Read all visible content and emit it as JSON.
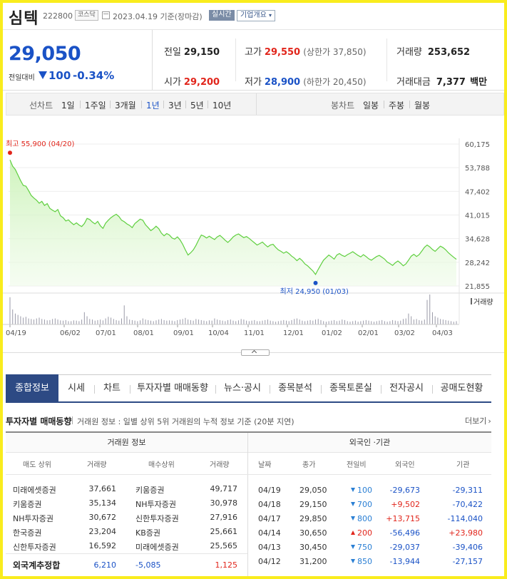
{
  "header": {
    "name": "심텍",
    "code": "222800",
    "market": "코스닥",
    "date": "2023.04.19 기준(장마감)",
    "realtime_label": "실시간",
    "corp_label": "기업개요",
    "corp_icon": "chevron-down-icon"
  },
  "price": {
    "current": "29,050",
    "change_label": "전일대비",
    "change": "100",
    "change_pct": "-0.34%",
    "prev_close_label": "전일",
    "prev_close": "29,150",
    "high_label": "고가",
    "high": "29,550",
    "upper_limit": "(상한가 37,850)",
    "volume_label": "거래량",
    "volume": "253,652",
    "open_label": "시가",
    "open": "29,200",
    "low_label": "저가",
    "low": "28,900",
    "lower_limit": "(하한가 20,450)",
    "trade_value_label": "거래대금",
    "trade_value": "7,377",
    "trade_value_unit": "백만"
  },
  "period_tabs": {
    "line_label": "선차트",
    "items": [
      "1일",
      "1주일",
      "3개월",
      "1년",
      "3년",
      "5년",
      "10년"
    ],
    "active": "1년",
    "candle_label": "봉차트",
    "candle_items": [
      "일봉",
      "주봉",
      "월봉"
    ]
  },
  "chart_data": {
    "type": "area",
    "y_ticks": [
      "60,175",
      "53,788",
      "47,402",
      "41,015",
      "34,628",
      "28,242",
      "21,855"
    ],
    "ylim": [
      21855,
      60175
    ],
    "x_ticks": [
      "04/19",
      "06/02",
      "07/01",
      "08/01",
      "09/01",
      "10/04",
      "11/01",
      "12/01",
      "01/02",
      "02/01",
      "03/02",
      "04/03"
    ],
    "max_label": "최고 55,900 (04/20)",
    "min_label": "최저 24,950 (01/03)",
    "volume_label": "거래량",
    "price_series": [
      55900,
      54200,
      53300,
      51800,
      50300,
      49000,
      48800,
      47600,
      46300,
      45600,
      45000,
      44200,
      44700,
      43600,
      44100,
      42800,
      42300,
      41900,
      42500,
      40800,
      40300,
      39400,
      39700,
      39000,
      38400,
      38900,
      38300,
      37900,
      38700,
      40100,
      39800,
      39100,
      38600,
      39300,
      38100,
      37400,
      38800,
      39600,
      40300,
      40800,
      41200,
      40600,
      39600,
      39200,
      38600,
      38200,
      37600,
      38700,
      39300,
      39900,
      39600,
      38400,
      37600,
      36800,
      37300,
      38000,
      37300,
      36100,
      35400,
      36000,
      35600,
      34800,
      34500,
      35100,
      34300,
      33100,
      31600,
      30200,
      30800,
      31600,
      32800,
      34300,
      35600,
      35300,
      34800,
      35300,
      34800,
      34400,
      35100,
      35500,
      34900,
      34200,
      33600,
      34300,
      35100,
      35600,
      35900,
      35400,
      34900,
      35200,
      34700,
      34100,
      33500,
      32900,
      33300,
      33700,
      33000,
      32400,
      32900,
      33100,
      32300,
      31600,
      31200,
      30700,
      31100,
      30600,
      29900,
      29400,
      28700,
      29300,
      28700,
      27800,
      27300,
      26600,
      25900,
      24950,
      26300,
      27600,
      28800,
      29500,
      30200,
      29700,
      29100,
      30200,
      30600,
      30100,
      29800,
      30300,
      30700,
      31100,
      30600,
      30100,
      29700,
      30300,
      29800,
      29200,
      28800,
      29300,
      29800,
      30100,
      29600,
      29100,
      28300,
      27900,
      27400,
      28100,
      28600,
      28000,
      27300,
      27800,
      28800,
      29900,
      30400,
      29800,
      30300,
      31300,
      32300,
      32900,
      32400,
      31700,
      31200,
      31900,
      32600,
      32200,
      31600,
      30800,
      30200,
      29600,
      29050
    ],
    "volume_series": [
      100,
      55,
      40,
      35,
      30,
      25,
      28,
      22,
      20,
      18,
      22,
      25,
      20,
      18,
      15,
      16,
      20,
      22,
      18,
      15,
      14,
      16,
      12,
      12,
      15,
      14,
      12,
      18,
      45,
      30,
      20,
      18,
      14,
      16,
      18,
      15,
      22,
      28,
      25,
      20,
      16,
      14,
      22,
      70,
      30,
      18,
      16,
      14,
      12,
      15,
      22,
      18,
      16,
      14,
      12,
      15,
      18,
      20,
      16,
      14,
      15,
      14,
      12,
      16,
      18,
      20,
      24,
      18,
      16,
      14,
      20,
      18,
      16,
      14,
      12,
      15,
      14,
      22,
      18,
      16,
      14,
      12,
      16,
      18,
      14,
      12,
      15,
      20,
      18,
      14,
      12,
      14,
      16,
      12,
      12,
      14,
      16,
      18,
      14,
      12,
      10,
      12,
      14,
      16,
      14,
      12,
      16,
      20,
      22,
      18,
      14,
      12,
      14,
      16,
      14,
      18,
      20,
      16,
      12,
      10,
      12,
      14,
      16,
      12,
      14,
      18,
      16,
      12,
      10,
      12,
      14,
      10,
      12,
      14,
      16,
      14,
      12,
      10,
      12,
      14,
      16,
      12,
      10,
      12,
      16,
      14,
      12,
      14,
      20,
      22,
      40,
      30,
      18,
      20,
      16,
      14,
      18,
      90,
      110,
      45,
      30,
      25,
      20,
      18,
      16,
      14,
      12,
      10,
      12
    ]
  },
  "main_tabs": [
    "종합정보",
    "시세",
    "차트",
    "투자자별 매매동향",
    "뉴스·공시",
    "종목분석",
    "종목토론실",
    "전자공시",
    "공매도현황"
  ],
  "main_tab_active": "종합정보",
  "investor": {
    "title": "투자자별 매매동향",
    "desc": "거래원 정보 : 일별 상위 5위 거래원의 누적 정보 기준 (20분 지연)",
    "more": "더보기",
    "more_icon": "chevron-right-icon",
    "broker_title": "거래원 정보",
    "broker_headers": [
      "매도 상위",
      "거래량",
      "매수상위",
      "거래량"
    ],
    "broker_rows": [
      [
        "미래에셋증권",
        "37,661",
        "키움증권",
        "49,717"
      ],
      [
        "키움증권",
        "35,134",
        "NH투자증권",
        "30,978"
      ],
      [
        "NH투자증권",
        "30,672",
        "신한투자증권",
        "27,916"
      ],
      [
        "한국증권",
        "23,204",
        "KB증권",
        "25,661"
      ],
      [
        "신한투자증권",
        "16,592",
        "미래에셋증권",
        "25,565"
      ]
    ],
    "foreign_sum": [
      "외국계추정합",
      "6,210",
      "-5,085",
      "1,125"
    ],
    "foreign_title": "외국인 ·기관",
    "foreign_headers": [
      "날짜",
      "종가",
      "전일비",
      "외국인",
      "기관"
    ],
    "foreign_rows": [
      [
        "04/19",
        "29,050",
        "down",
        "100",
        "-29,673",
        "-29,311"
      ],
      [
        "04/18",
        "29,150",
        "down",
        "700",
        "+9,502",
        "-70,422"
      ],
      [
        "04/17",
        "29,850",
        "down",
        "800",
        "+13,715",
        "-114,040"
      ],
      [
        "04/14",
        "30,650",
        "up",
        "200",
        "-56,496",
        "+23,980"
      ],
      [
        "04/13",
        "30,450",
        "down",
        "750",
        "-29,037",
        "-39,406"
      ],
      [
        "04/12",
        "31,200",
        "down",
        "850",
        "-13,944",
        "-27,157"
      ]
    ]
  },
  "colors": {
    "up": "#e1251b",
    "down": "#1a52c6",
    "tab_active": "#2d4a84",
    "area_line": "#5fcf3f",
    "frame": "#f9ec1d"
  }
}
